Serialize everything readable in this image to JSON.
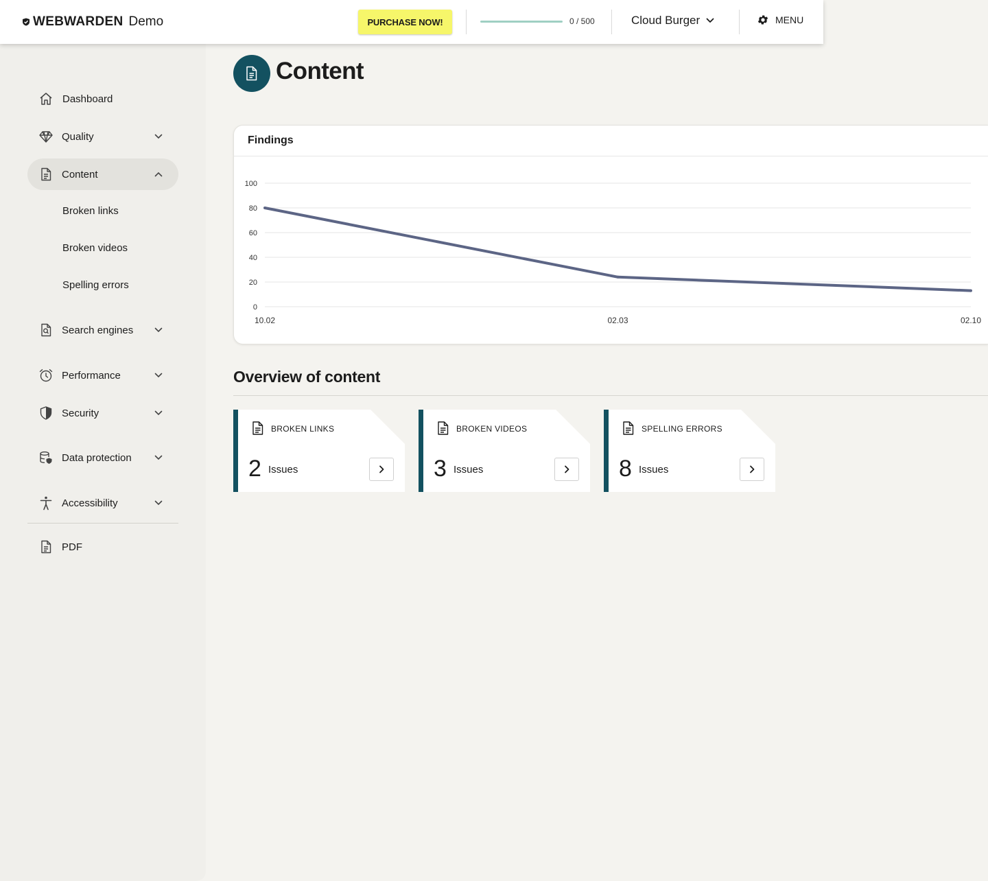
{
  "topbar": {
    "brand_name": "WEBWARDEN",
    "brand_suffix": "Demo",
    "purchase_label": "PURCHASE NOW!",
    "quota": {
      "used": 0,
      "total": 500,
      "label": "0 / 500"
    },
    "project": "Cloud Burger",
    "menu_label": "MENU"
  },
  "sidebar": {
    "items": [
      {
        "label": "Dashboard",
        "icon": "home-icon"
      },
      {
        "label": "Quality",
        "icon": "diamond-icon"
      },
      {
        "label": "Content",
        "icon": "document-icon",
        "active": true
      },
      {
        "label": "Search engines",
        "icon": "search-doc-icon"
      },
      {
        "label": "Performance",
        "icon": "alarm-clock-icon"
      },
      {
        "label": "Security",
        "icon": "shield-icon"
      },
      {
        "label": "Data protection",
        "icon": "database-shield-icon"
      },
      {
        "label": "Accessibility",
        "icon": "accessibility-icon"
      },
      {
        "label": "PDF",
        "icon": "pdf-document-icon"
      }
    ],
    "content_subitems": [
      "Broken links",
      "Broken videos",
      "Spelling errors"
    ]
  },
  "page": {
    "title": "Content"
  },
  "chart": {
    "card_title": "Findings"
  },
  "chart_data": {
    "type": "line",
    "x": [
      "10.02",
      "02.03",
      "02.10"
    ],
    "series": [
      {
        "values": [
          80,
          24,
          13
        ]
      }
    ],
    "yticks": [
      0,
      20,
      40,
      60,
      80,
      100
    ],
    "ylim": [
      0,
      100
    ],
    "grid": true,
    "line_color": "#5c6585"
  },
  "overview": {
    "title": "Overview of content",
    "cards": [
      {
        "title": "BROKEN LINKS",
        "count": "2",
        "unit": "Issues"
      },
      {
        "title": "BROKEN VIDEOS",
        "count": "3",
        "unit": "Issues"
      },
      {
        "title": "SPELLING ERRORS",
        "count": "8",
        "unit": "Issues"
      }
    ]
  },
  "colors": {
    "accent": "#135160",
    "purchase": "#f6f66a",
    "background": "#f4f3ef"
  }
}
